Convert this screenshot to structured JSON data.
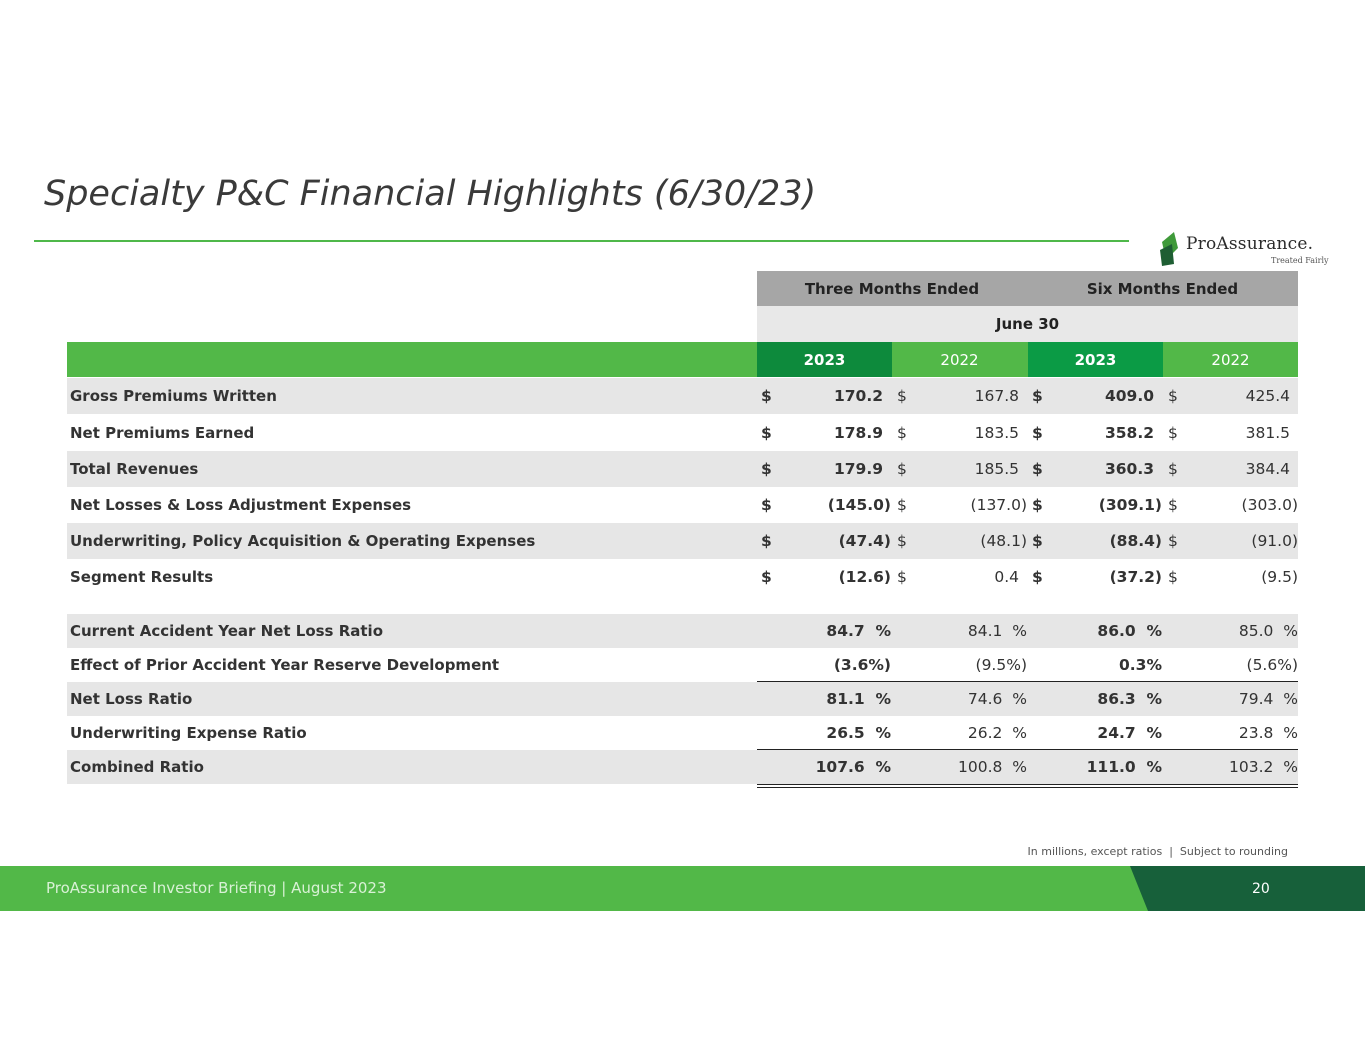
{
  "title": "Specialty P&C Financial Highlights (6/30/23)",
  "logo": {
    "word": "ProAssurance.",
    "tagline": "Treated Fairly"
  },
  "header": {
    "three_months": "Three Months Ended",
    "six_months": "Six Months Ended",
    "period": "June 30",
    "years": [
      "2023",
      "2022",
      "2023",
      "2022"
    ]
  },
  "currency_rows": [
    {
      "label": "Gross Premiums Written",
      "values": [
        "170.2",
        "167.8",
        "409.0",
        "425.4"
      ]
    },
    {
      "label": "Net Premiums Earned",
      "values": [
        "178.9",
        "183.5",
        "358.2",
        "381.5"
      ]
    },
    {
      "label": "Total Revenues",
      "values": [
        "179.9",
        "185.5",
        "360.3",
        "384.4"
      ]
    },
    {
      "label": "Net Losses & Loss Adjustment Expenses",
      "values": [
        "(145.0)",
        "(137.0)",
        "(309.1)",
        "(303.0)"
      ]
    },
    {
      "label": "Underwriting, Policy Acquisition & Operating Expenses",
      "values": [
        "(47.4)",
        "(48.1)",
        "(88.4)",
        "(91.0)"
      ]
    },
    {
      "label": "Segment Results",
      "values": [
        "(12.6)",
        "0.4",
        "(37.2)",
        "(9.5)"
      ]
    }
  ],
  "currency_symbol": "$",
  "ratio_rows": [
    {
      "label": "Current Accident Year Net Loss Ratio",
      "values": [
        "84.7  %",
        "84.1  %",
        "86.0  %",
        "85.0  %"
      ]
    },
    {
      "label": "Effect of Prior Accident Year Reserve Development",
      "values": [
        "(3.6%)",
        "(9.5%)",
        "0.3%",
        "(5.6%)"
      ]
    },
    {
      "label": "Net Loss Ratio",
      "values": [
        "81.1  %",
        "74.6  %",
        "86.3  %",
        "79.4  %"
      ]
    },
    {
      "label": "Underwriting Expense Ratio",
      "values": [
        "26.5  %",
        "26.2  %",
        "24.7  %",
        "23.8  %"
      ]
    },
    {
      "label": "Combined Ratio",
      "values": [
        "107.6  %",
        "100.8  %",
        "111.0  %",
        "103.2  %"
      ]
    }
  ],
  "note": "In millions, except ratios  |  Subject to rounding",
  "footer": {
    "text": "ProAssurance Investor Briefing | August 2023",
    "page": "20"
  }
}
